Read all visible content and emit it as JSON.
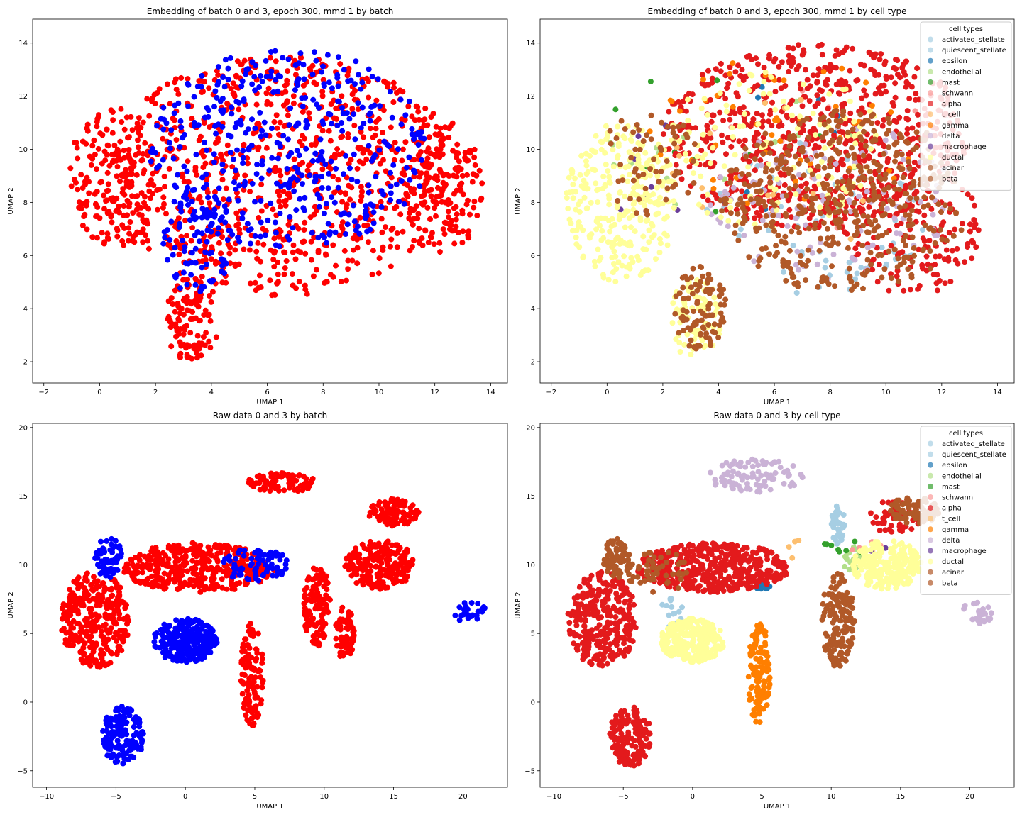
{
  "chart_data": [
    {
      "type": "scatter",
      "title": "Embedding of batch 0 and 3, epoch 300, mmd 1 by batch",
      "xlabel": "UMAP 1",
      "ylabel": "UMAP 2",
      "xlim": [
        -2.4,
        14.6
      ],
      "ylim": [
        1.2,
        14.9
      ],
      "xticks": [
        -2,
        0,
        2,
        4,
        6,
        8,
        10,
        12,
        14
      ],
      "yticks": [
        2,
        4,
        6,
        8,
        10,
        12,
        14
      ],
      "legend": "none",
      "coloring": "batch",
      "series": [
        {
          "color": "#ff0000",
          "clusters": [
            {
              "cx": 6.5,
              "cy": 9.0,
              "rx": 6.5,
              "ry": 4.5,
              "n": 900
            },
            {
              "cx": 0.5,
              "cy": 9.0,
              "rx": 1.6,
              "ry": 2.7,
              "n": 160
            },
            {
              "cx": 12.3,
              "cy": 8.5,
              "rx": 1.4,
              "ry": 2.6,
              "n": 140
            },
            {
              "cx": 3.3,
              "cy": 3.6,
              "rx": 1.0,
              "ry": 1.6,
              "n": 110
            }
          ]
        },
        {
          "color": "#0000ff",
          "clusters": [
            {
              "cx": 6.8,
              "cy": 10.0,
              "rx": 5.0,
              "ry": 3.8,
              "n": 420
            },
            {
              "cx": 3.5,
              "cy": 6.5,
              "rx": 1.3,
              "ry": 2.0,
              "n": 80
            }
          ]
        }
      ]
    },
    {
      "type": "scatter",
      "title": "Embedding of batch 0 and 3, epoch 300, mmd 1 by cell type",
      "xlabel": "UMAP 1",
      "ylabel": "UMAP 2",
      "xlim": [
        -2.4,
        14.6
      ],
      "ylim": [
        1.2,
        14.9
      ],
      "xticks": [
        -2,
        0,
        2,
        4,
        6,
        8,
        10,
        12,
        14
      ],
      "yticks": [
        2,
        4,
        6,
        8,
        10,
        12,
        14
      ],
      "legend": "top-right",
      "legend_title": "cell types",
      "coloring": "cell type",
      "series": [
        {
          "name": "activated_stellate",
          "color": "#a6cee3",
          "clusters": [
            {
              "cx": 7.5,
              "cy": 7.5,
              "rx": 4.0,
              "ry": 3.0,
              "n": 40
            }
          ]
        },
        {
          "name": "quiescent_stellate",
          "color": "#a6cee3",
          "clusters": [
            {
              "cx": 8.5,
              "cy": 7.0,
              "rx": 3.0,
              "ry": 2.5,
              "n": 30
            }
          ]
        },
        {
          "name": "epsilon",
          "color": "#1f78b4",
          "clusters": [
            {
              "cx": 6.0,
              "cy": 10.0,
              "rx": 4.0,
              "ry": 3.0,
              "n": 8
            }
          ]
        },
        {
          "name": "endothelial",
          "color": "#b2df8a",
          "clusters": [
            {
              "cx": 5.0,
              "cy": 10.0,
              "rx": 5.0,
              "ry": 3.0,
              "n": 20
            }
          ]
        },
        {
          "name": "mast",
          "color": "#33a02c",
          "clusters": [
            {
              "cx": 4.0,
              "cy": 10.0,
              "rx": 5.0,
              "ry": 3.0,
              "n": 10
            }
          ]
        },
        {
          "name": "schwann",
          "color": "#fb9a99",
          "clusters": [
            {
              "cx": 8.0,
              "cy": 10.0,
              "rx": 5.0,
              "ry": 3.0,
              "n": 12
            }
          ]
        },
        {
          "name": "alpha",
          "color": "#e31a1c",
          "clusters": [
            {
              "cx": 7.5,
              "cy": 10.5,
              "rx": 5.5,
              "ry": 3.5,
              "n": 750
            },
            {
              "cx": 11.0,
              "cy": 7.0,
              "rx": 2.5,
              "ry": 2.5,
              "n": 150
            }
          ]
        },
        {
          "name": "t_cell",
          "color": "#fdbf6f",
          "clusters": [
            {
              "cx": 6.0,
              "cy": 9.0,
              "rx": 5.0,
              "ry": 3.0,
              "n": 15
            }
          ]
        },
        {
          "name": "gamma",
          "color": "#ff7f00",
          "clusters": [
            {
              "cx": 6.5,
              "cy": 10.5,
              "rx": 5.0,
              "ry": 3.0,
              "n": 50
            }
          ]
        },
        {
          "name": "delta",
          "color": "#cab2d6",
          "clusters": [
            {
              "cx": 8.0,
              "cy": 8.0,
              "rx": 4.5,
              "ry": 3.0,
              "n": 110
            }
          ]
        },
        {
          "name": "macrophage",
          "color": "#6a3d9a",
          "clusters": [
            {
              "cx": 2.0,
              "cy": 9.0,
              "rx": 3.0,
              "ry": 2.0,
              "n": 10
            }
          ]
        },
        {
          "name": "ductal",
          "color": "#ffff99",
          "clusters": [
            {
              "cx": 0.5,
              "cy": 8.0,
              "rx": 2.0,
              "ry": 3.0,
              "n": 280
            },
            {
              "cx": 3.2,
              "cy": 3.6,
              "rx": 1.0,
              "ry": 1.5,
              "n": 80
            },
            {
              "cx": 6.0,
              "cy": 10.0,
              "rx": 4.0,
              "ry": 3.0,
              "n": 120
            }
          ]
        },
        {
          "name": "acinar",
          "color": "#b15928",
          "clusters": [
            {
              "cx": 8.5,
              "cy": 8.0,
              "rx": 4.5,
              "ry": 3.5,
              "n": 380
            },
            {
              "cx": 3.3,
              "cy": 4.0,
              "rx": 1.0,
              "ry": 1.6,
              "n": 90
            },
            {
              "cx": 1.5,
              "cy": 9.5,
              "rx": 1.8,
              "ry": 2.0,
              "n": 60
            }
          ]
        },
        {
          "name": "beta",
          "color": "#b15928",
          "clusters": [
            {
              "cx": 9.0,
              "cy": 9.0,
              "rx": 3.0,
              "ry": 2.5,
              "n": 80
            }
          ]
        }
      ]
    },
    {
      "type": "scatter",
      "title": "Raw data 0 and 3 by batch",
      "xlabel": "UMAP 1",
      "ylabel": "UMAP 2",
      "xlim": [
        -11,
        23.2
      ],
      "ylim": [
        -6.2,
        20.3
      ],
      "xticks": [
        -10,
        -5,
        0,
        5,
        10,
        15,
        20
      ],
      "yticks": [
        -5,
        0,
        5,
        10,
        15,
        20
      ],
      "legend": "none",
      "coloring": "batch",
      "series": [
        {
          "color": "#ff0000",
          "clusters": [
            {
              "cx": -6.5,
              "cy": 6.0,
              "rx": 2.5,
              "ry": 3.5,
              "n": 300
            },
            {
              "cx": 1.0,
              "cy": 9.8,
              "rx": 5.5,
              "ry": 1.8,
              "n": 400
            },
            {
              "cx": 14.0,
              "cy": 10.0,
              "rx": 2.5,
              "ry": 1.8,
              "n": 200
            },
            {
              "cx": 15.0,
              "cy": 13.8,
              "rx": 1.8,
              "ry": 1.0,
              "n": 100
            },
            {
              "cx": 9.5,
              "cy": 7.0,
              "rx": 1.0,
              "ry": 3.0,
              "n": 110
            },
            {
              "cx": 11.5,
              "cy": 5.0,
              "rx": 0.7,
              "ry": 2.0,
              "n": 60
            },
            {
              "cx": 4.8,
              "cy": 2.0,
              "rx": 0.8,
              "ry": 3.8,
              "n": 110
            },
            {
              "cx": -10.2,
              "cy": 1.5,
              "rx": 0.1,
              "ry": 0.1,
              "n": 0
            },
            {
              "cx": 7.0,
              "cy": 16.0,
              "rx": 2.5,
              "ry": 0.7,
              "n": 80
            }
          ]
        },
        {
          "color": "#0000ff",
          "clusters": [
            {
              "cx": 0.0,
              "cy": 4.5,
              "rx": 2.3,
              "ry": 1.6,
              "n": 280
            },
            {
              "cx": -4.5,
              "cy": -2.5,
              "rx": 1.5,
              "ry": 2.2,
              "n": 150
            },
            {
              "cx": -5.5,
              "cy": 10.5,
              "rx": 1.0,
              "ry": 1.5,
              "n": 60
            },
            {
              "cx": 5.0,
              "cy": 10.0,
              "rx": 2.5,
              "ry": 1.2,
              "n": 80
            },
            {
              "cx": 20.5,
              "cy": 6.5,
              "rx": 1.2,
              "ry": 0.8,
              "n": 25
            }
          ]
        }
      ]
    },
    {
      "type": "scatter",
      "title": "Raw data 0 and 3 by cell type",
      "xlabel": "UMAP 1",
      "ylabel": "UMAP 2",
      "xlim": [
        -11,
        23.2
      ],
      "ylim": [
        -6.2,
        20.3
      ],
      "xticks": [
        -10,
        -5,
        0,
        5,
        10,
        15,
        20
      ],
      "yticks": [
        -5,
        0,
        5,
        10,
        15,
        20
      ],
      "legend": "top-right",
      "legend_title": "cell types",
      "coloring": "cell type",
      "series": [
        {
          "name": "activated_stellate",
          "color": "#a6cee3",
          "clusters": [
            {
              "cx": 10.5,
              "cy": 13.0,
              "rx": 0.5,
              "ry": 1.5,
              "n": 40
            }
          ]
        },
        {
          "name": "quiescent_stellate",
          "color": "#a6cee3",
          "clusters": [
            {
              "cx": -1.5,
              "cy": 6.5,
              "rx": 0.8,
              "ry": 1.2,
              "n": 15
            }
          ]
        },
        {
          "name": "epsilon",
          "color": "#1f78b4",
          "clusters": [
            {
              "cx": 5.0,
              "cy": 8.5,
              "rx": 0.6,
              "ry": 0.3,
              "n": 20
            }
          ]
        },
        {
          "name": "endothelial",
          "color": "#b2df8a",
          "clusters": [
            {
              "cx": 11.5,
              "cy": 10.5,
              "rx": 0.8,
              "ry": 1.0,
              "n": 20
            }
          ]
        },
        {
          "name": "mast",
          "color": "#33a02c",
          "clusters": [
            {
              "cx": 11.0,
              "cy": 11.5,
              "rx": 1.5,
              "ry": 1.0,
              "n": 8
            }
          ]
        },
        {
          "name": "schwann",
          "color": "#fb9a99",
          "clusters": [
            {
              "cx": 13.0,
              "cy": 11.0,
              "rx": 1.5,
              "ry": 1.0,
              "n": 6
            }
          ]
        },
        {
          "name": "alpha",
          "color": "#e31a1c",
          "clusters": [
            {
              "cx": -6.5,
              "cy": 6.0,
              "rx": 2.5,
              "ry": 3.5,
              "n": 300
            },
            {
              "cx": 1.5,
              "cy": 9.8,
              "rx": 5.5,
              "ry": 1.8,
              "n": 450
            },
            {
              "cx": -4.5,
              "cy": -2.5,
              "rx": 1.5,
              "ry": 2.2,
              "n": 150
            },
            {
              "cx": 14.5,
              "cy": 13.5,
              "rx": 2.0,
              "ry": 1.2,
              "n": 50
            }
          ]
        },
        {
          "name": "t_cell",
          "color": "#fdbf6f",
          "clusters": [
            {
              "cx": 8.0,
              "cy": 11.0,
              "rx": 1.5,
              "ry": 1.0,
              "n": 4
            }
          ]
        },
        {
          "name": "gamma",
          "color": "#ff7f00",
          "clusters": [
            {
              "cx": 4.8,
              "cy": 2.0,
              "rx": 0.8,
              "ry": 3.8,
              "n": 130
            }
          ]
        },
        {
          "name": "delta",
          "color": "#cab2d6",
          "clusters": [
            {
              "cx": 4.5,
              "cy": 16.5,
              "rx": 3.5,
              "ry": 1.2,
              "n": 90
            },
            {
              "cx": 20.5,
              "cy": 6.5,
              "rx": 1.2,
              "ry": 0.8,
              "n": 25
            }
          ]
        },
        {
          "name": "macrophage",
          "color": "#6a3d9a",
          "clusters": [
            {
              "cx": 13.5,
              "cy": 11.0,
              "rx": 0.6,
              "ry": 0.4,
              "n": 6
            }
          ]
        },
        {
          "name": "ductal",
          "color": "#ffff99",
          "clusters": [
            {
              "cx": 14.0,
              "cy": 10.0,
              "rx": 2.5,
              "ry": 1.8,
              "n": 230
            },
            {
              "cx": 0.0,
              "cy": 4.5,
              "rx": 2.3,
              "ry": 1.6,
              "n": 280
            }
          ]
        },
        {
          "name": "acinar",
          "color": "#b15928",
          "clusters": [
            {
              "cx": -5.5,
              "cy": 10.5,
              "rx": 1.0,
              "ry": 1.5,
              "n": 70
            },
            {
              "cx": 10.5,
              "cy": 6.0,
              "rx": 1.2,
              "ry": 3.5,
              "n": 140
            },
            {
              "cx": 16.0,
              "cy": 14.0,
              "rx": 1.8,
              "ry": 1.0,
              "n": 80
            }
          ]
        },
        {
          "name": "beta",
          "color": "#b15928",
          "clusters": [
            {
              "cx": -2.5,
              "cy": 9.5,
              "rx": 2.5,
              "ry": 1.5,
              "n": 50
            }
          ]
        }
      ]
    }
  ]
}
